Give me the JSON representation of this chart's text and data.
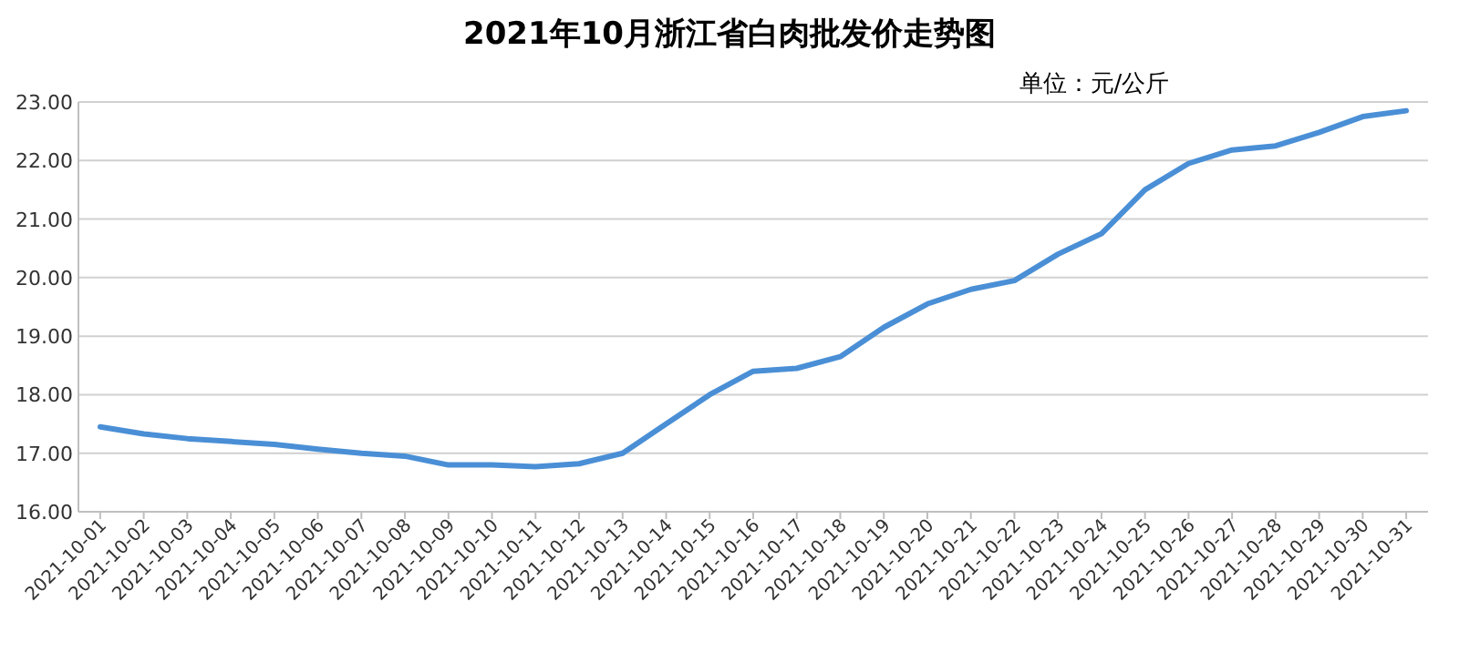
{
  "chart_data": {
    "type": "line",
    "title": "2021年10月浙江省白肉批发价走势图",
    "annotations": [
      "单位：元/公斤"
    ],
    "categories": [
      "2021-10-01",
      "2021-10-02",
      "2021-10-03",
      "2021-10-04",
      "2021-10-05",
      "2021-10-06",
      "2021-10-07",
      "2021-10-08",
      "2021-10-09",
      "2021-10-10",
      "2021-10-11",
      "2021-10-12",
      "2021-10-13",
      "2021-10-14",
      "2021-10-15",
      "2021-10-16",
      "2021-10-17",
      "2021-10-18",
      "2021-10-19",
      "2021-10-20",
      "2021-10-21",
      "2021-10-22",
      "2021-10-23",
      "2021-10-24",
      "2021-10-25",
      "2021-10-26",
      "2021-10-27",
      "2021-10-28",
      "2021-10-29",
      "2021-10-30",
      "2021-10-31"
    ],
    "series": [
      {
        "color": "#4a8fd6",
        "values": [
          17.45,
          17.33,
          17.25,
          17.2,
          17.15,
          17.07,
          17.0,
          16.95,
          16.8,
          16.8,
          16.77,
          16.82,
          17.0,
          17.5,
          18.0,
          18.4,
          18.45,
          18.65,
          19.15,
          19.55,
          19.8,
          19.95,
          20.4,
          20.75,
          21.5,
          21.95,
          22.18,
          22.25,
          22.48,
          22.75,
          22.85
        ]
      }
    ],
    "ylim": [
      16,
      23
    ],
    "yticks": [
      {
        "value": 16,
        "label": "16.00"
      },
      {
        "value": 17,
        "label": "17.00"
      },
      {
        "value": 18,
        "label": "18.00"
      },
      {
        "value": 19,
        "label": "19.00"
      },
      {
        "value": 20,
        "label": "20.00"
      },
      {
        "value": 21,
        "label": "21.00"
      },
      {
        "value": 22,
        "label": "22.00"
      },
      {
        "value": 23,
        "label": "23.00"
      }
    ],
    "grid": "y",
    "marker": "none",
    "line_style": "solid"
  }
}
